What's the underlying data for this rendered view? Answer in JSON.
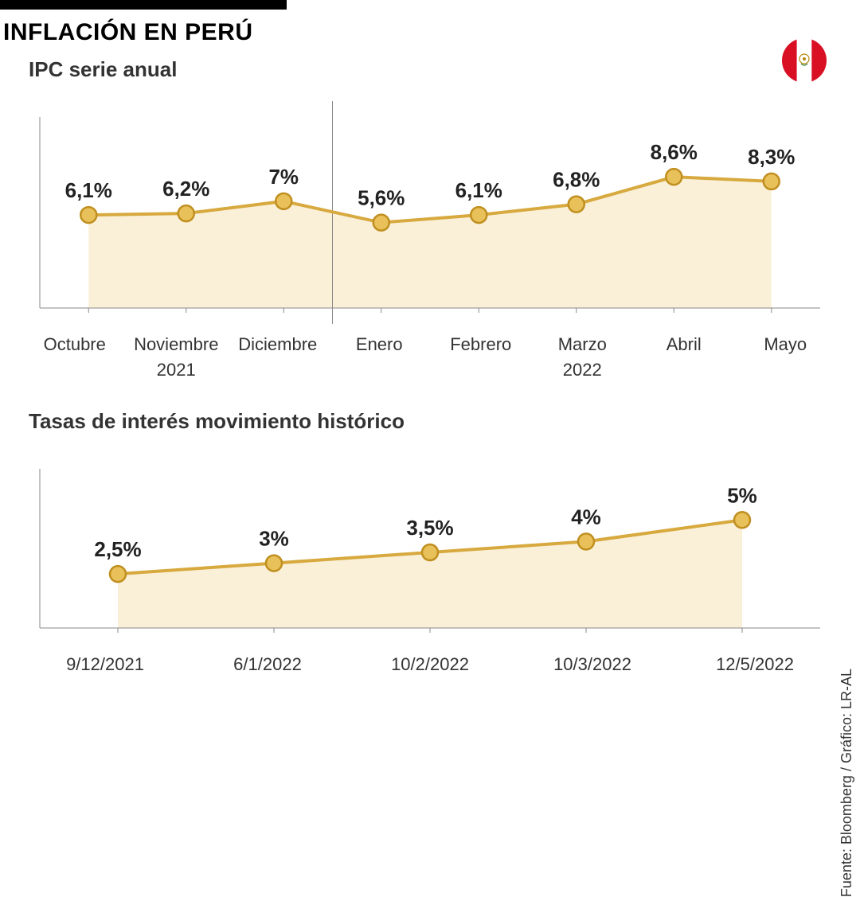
{
  "title": "INFLACIÓN EN PERÚ",
  "source_text": "Fuente: Bloomberg / Gráfico: LR-AL",
  "colors": {
    "line": "#d7a93e",
    "line_dark": "#c99a2e",
    "marker_fill": "#e8c15a",
    "marker_stroke": "#c08f1f",
    "area_fill": "#faf0d8",
    "axis": "#888888",
    "text": "#222222",
    "title": "#000000",
    "background": "#ffffff",
    "flag_red": "#d91023",
    "flag_white": "#ffffff",
    "emblem": "#b8860b"
  },
  "chart1": {
    "title": "IPC serie anual",
    "type": "line-area",
    "categories": [
      "Octubre",
      "Noviembre",
      "Diciembre",
      "Enero",
      "Febrero",
      "Marzo",
      "Abril",
      "Mayo"
    ],
    "values": [
      6.1,
      6.2,
      7.0,
      5.6,
      6.1,
      6.8,
      8.6,
      8.3
    ],
    "labels": [
      "6,1%",
      "6,2%",
      "7%",
      "5,6%",
      "6,1%",
      "6,8%",
      "8,6%",
      "8,3%"
    ],
    "ylim": [
      0,
      12
    ],
    "line_width": 4,
    "marker_radius": 10,
    "value_fontsize": 26,
    "axis_fontsize": 22,
    "year_groups": [
      {
        "label": "2021",
        "span": 3
      },
      {
        "label": "2022",
        "span": 5
      }
    ],
    "divider_after_index": 2
  },
  "chart2": {
    "title": "Tasas de interés movimiento histórico",
    "type": "line-area",
    "categories": [
      "9/12/2021",
      "6/1/2022",
      "10/2/2022",
      "10/3/2022",
      "12/5/2022"
    ],
    "values": [
      2.5,
      3.0,
      3.5,
      4.0,
      5.0
    ],
    "labels": [
      "2,5%",
      "3%",
      "3,5%",
      "4%",
      "5%"
    ],
    "ylim": [
      0,
      7
    ],
    "line_width": 4,
    "marker_radius": 10,
    "value_fontsize": 26,
    "axis_fontsize": 22
  }
}
